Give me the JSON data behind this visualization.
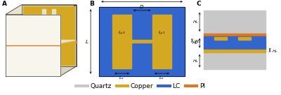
{
  "colors": {
    "quartz": "#C8C8C8",
    "copper": "#D4A820",
    "lc_blue": "#3366CC",
    "pi_orange": "#E07820",
    "white": "#FFFFFF",
    "black": "#000000",
    "bg": "#FFFFFF",
    "cream": "#F5F0E0",
    "dark_copper": "#B8960A"
  },
  "legend": {
    "items": [
      "Quartz",
      "Copper",
      "LC",
      "PI"
    ],
    "colors": [
      "#C8C8C8",
      "#D4A820",
      "#3366CC",
      "#E07820"
    ]
  },
  "font_size_label": 6.5,
  "font_size_dim": 5.0,
  "font_size_legend": 6.5
}
